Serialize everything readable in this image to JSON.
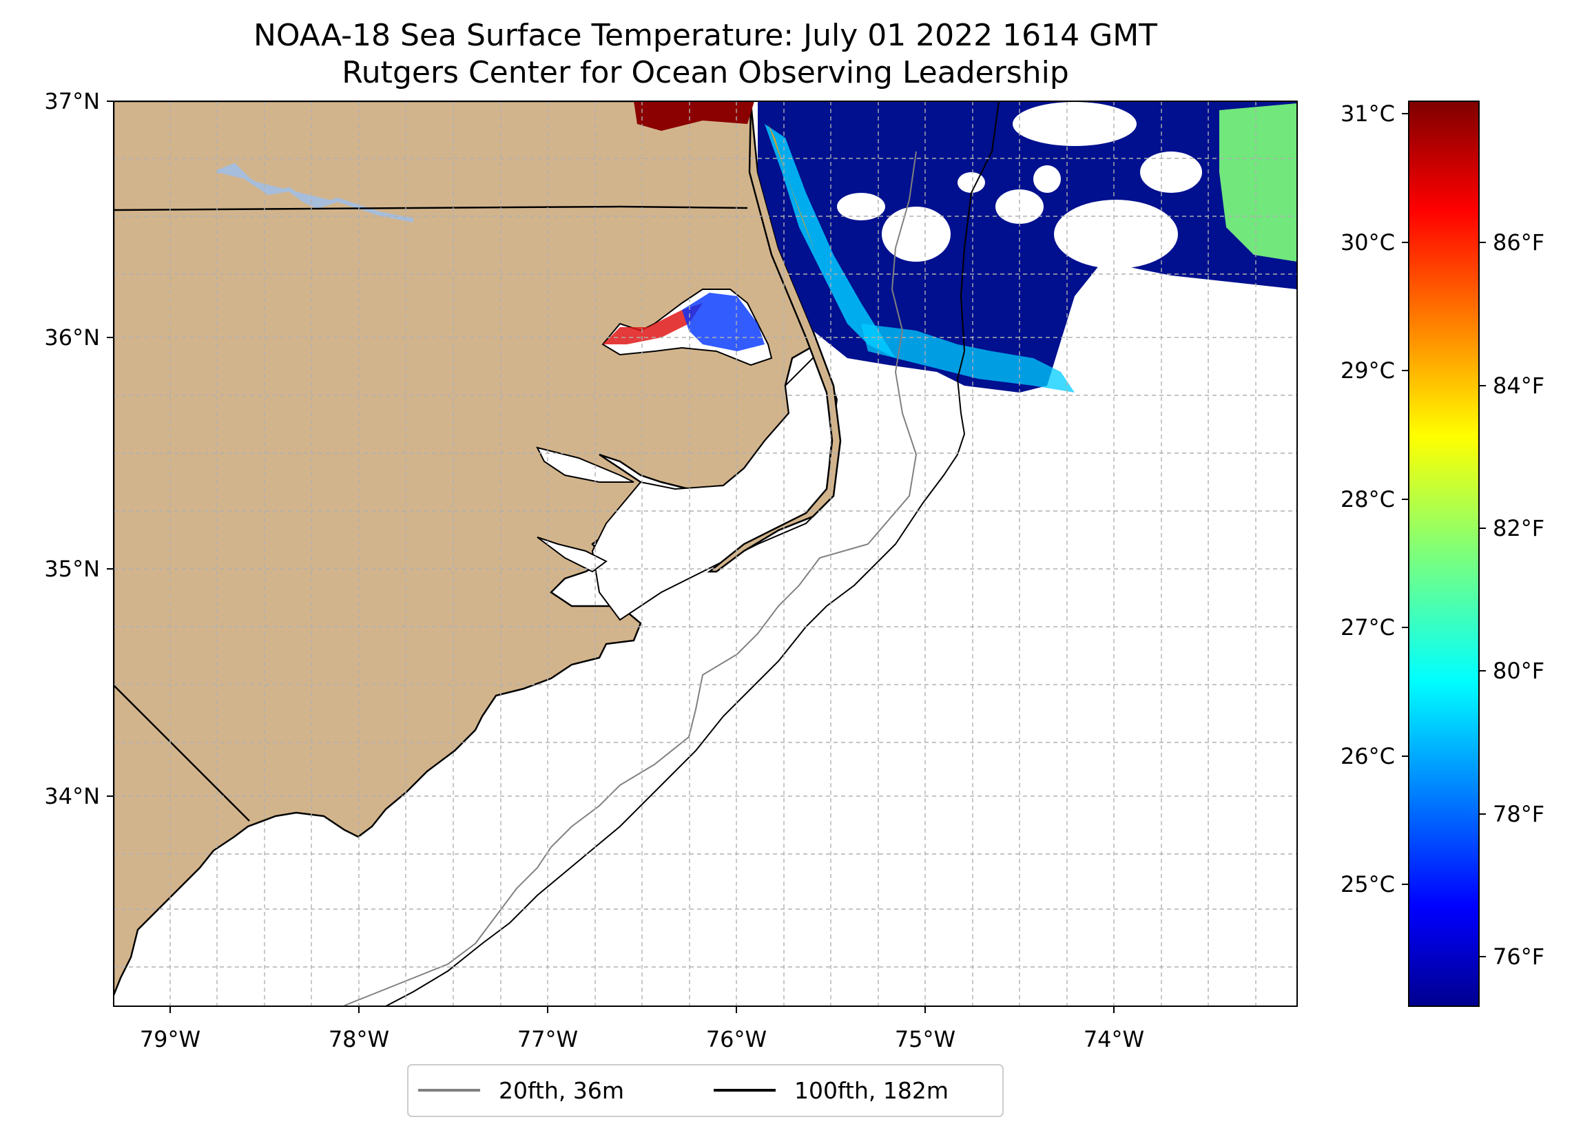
{
  "title": {
    "line1": "NOAA-18 Sea Surface Temperature: July 01 2022 1614 GMT",
    "line2": "Rutgers Center for Ocean Observing Leadership"
  },
  "map": {
    "lat_labels": [
      "37°N",
      "36°N",
      "35°N",
      "34°N"
    ],
    "lon_labels": [
      "79°W",
      "78°W",
      "77°W",
      "76°W",
      "75°W",
      "74°W"
    ],
    "extent": {
      "lon_min": -79.3,
      "lon_max": -73.05,
      "lat_min": 33.1,
      "lat_max": 37.0
    },
    "land_color": "#d2b48c",
    "lake_color": "#a6bddb",
    "grid": true
  },
  "colorbar": {
    "colormap": "jet",
    "celsius_labels": [
      "31°C",
      "30°C",
      "29°C",
      "28°C",
      "27°C",
      "26°C",
      "25°C"
    ],
    "fahrenheit_labels": [
      "86°F",
      "84°F",
      "82°F",
      "80°F",
      "78°F",
      "76°F"
    ],
    "range_c": [
      24.1,
      31.1
    ]
  },
  "legend": {
    "items": [
      {
        "label": "20fth, 36m",
        "color": "#808080"
      },
      {
        "label": "100fth, 182m",
        "color": "#000000"
      }
    ]
  }
}
